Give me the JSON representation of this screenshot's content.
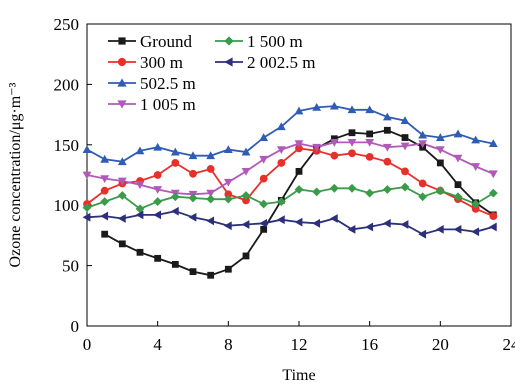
{
  "chart_data": {
    "type": "line",
    "title": "",
    "xlabel": "Time",
    "ylabel": "Ozone concentration/μg·m⁻³",
    "xlim": [
      0,
      24
    ],
    "ylim": [
      0,
      250
    ],
    "xticks": [
      "0",
      "4",
      "8",
      "12",
      "16",
      "20",
      "24"
    ],
    "yticks": [
      "0",
      "50",
      "100",
      "150",
      "200",
      "250"
    ],
    "grid": false,
    "legend_position": "top-left",
    "x": [
      0,
      1,
      2,
      3,
      4,
      5,
      6,
      7,
      8,
      9,
      10,
      11,
      12,
      13,
      14,
      15,
      16,
      17,
      18,
      19,
      20,
      21,
      22,
      23
    ],
    "series": [
      {
        "name": "Ground",
        "color": "#1a1a1a",
        "marker": "square",
        "x": [
          1,
          2,
          3,
          4,
          5,
          6,
          7,
          8,
          9,
          10,
          11,
          12,
          13,
          14,
          15,
          16,
          17,
          18,
          19,
          20,
          21,
          22,
          23
        ],
        "values": [
          76,
          68,
          61,
          56,
          51,
          45,
          42,
          47,
          58,
          80,
          104,
          128,
          147,
          155,
          160,
          159,
          162,
          156,
          148,
          135,
          117,
          102,
          92
        ]
      },
      {
        "name": "300 m",
        "color": "#e8302a",
        "marker": "circle",
        "x": [
          0,
          1,
          2,
          3,
          4,
          5,
          6,
          7,
          8,
          9,
          10,
          11,
          12,
          13,
          14,
          15,
          16,
          17,
          18,
          19,
          20,
          21,
          22,
          23
        ],
        "values": [
          101,
          112,
          118,
          120,
          125,
          135,
          126,
          130,
          109,
          104,
          122,
          135,
          147,
          145,
          141,
          143,
          140,
          136,
          128,
          118,
          112,
          105,
          97,
          91
        ]
      },
      {
        "name": "502.5 m",
        "color": "#2e5db3",
        "marker": "triangle",
        "x": [
          0,
          1,
          2,
          3,
          4,
          5,
          6,
          7,
          8,
          9,
          10,
          11,
          12,
          13,
          14,
          15,
          16,
          17,
          18,
          19,
          20,
          21,
          22,
          23
        ],
        "values": [
          146,
          138,
          136,
          145,
          148,
          144,
          141,
          141,
          146,
          144,
          156,
          165,
          178,
          181,
          182,
          179,
          179,
          173,
          170,
          158,
          156,
          159,
          154,
          151
        ]
      },
      {
        "name": "1 005 m",
        "color": "#b05ab8",
        "marker": "triangle-down",
        "x": [
          0,
          1,
          2,
          3,
          4,
          5,
          6,
          7,
          8,
          9,
          10,
          11,
          12,
          13,
          14,
          15,
          16,
          17,
          18,
          19,
          20,
          21,
          22,
          23
        ],
        "values": [
          125,
          122,
          120,
          117,
          113,
          110,
          109,
          110,
          119,
          128,
          138,
          146,
          151,
          148,
          152,
          152,
          152,
          148,
          149,
          151,
          146,
          139,
          132,
          126
        ]
      },
      {
        "name": "1 500 m",
        "color": "#3a9b48",
        "marker": "diamond",
        "x": [
          0,
          1,
          2,
          3,
          4,
          5,
          6,
          7,
          8,
          9,
          10,
          11,
          12,
          13,
          14,
          15,
          16,
          17,
          18,
          19,
          20,
          21,
          22,
          23
        ],
        "values": [
          98,
          103,
          108,
          97,
          103,
          107,
          106,
          105,
          105,
          108,
          101,
          103,
          113,
          111,
          114,
          114,
          110,
          113,
          115,
          107,
          112,
          107,
          101,
          110
        ]
      },
      {
        "name": "2 002.5 m",
        "color": "#2c2f7a",
        "marker": "triangle-left",
        "x": [
          0,
          1,
          2,
          3,
          4,
          5,
          6,
          7,
          8,
          9,
          10,
          11,
          12,
          13,
          14,
          15,
          16,
          17,
          18,
          19,
          20,
          21,
          22,
          23
        ],
        "values": [
          90,
          91,
          89,
          92,
          92,
          95,
          90,
          87,
          83,
          84,
          85,
          88,
          86,
          85,
          89,
          80,
          82,
          85,
          84,
          76,
          80,
          80,
          78,
          82
        ]
      }
    ],
    "legend_order": [
      "Ground",
      "1 500 m",
      "300 m",
      "2 002.5 m",
      "502.5 m",
      "1 005 m"
    ]
  }
}
